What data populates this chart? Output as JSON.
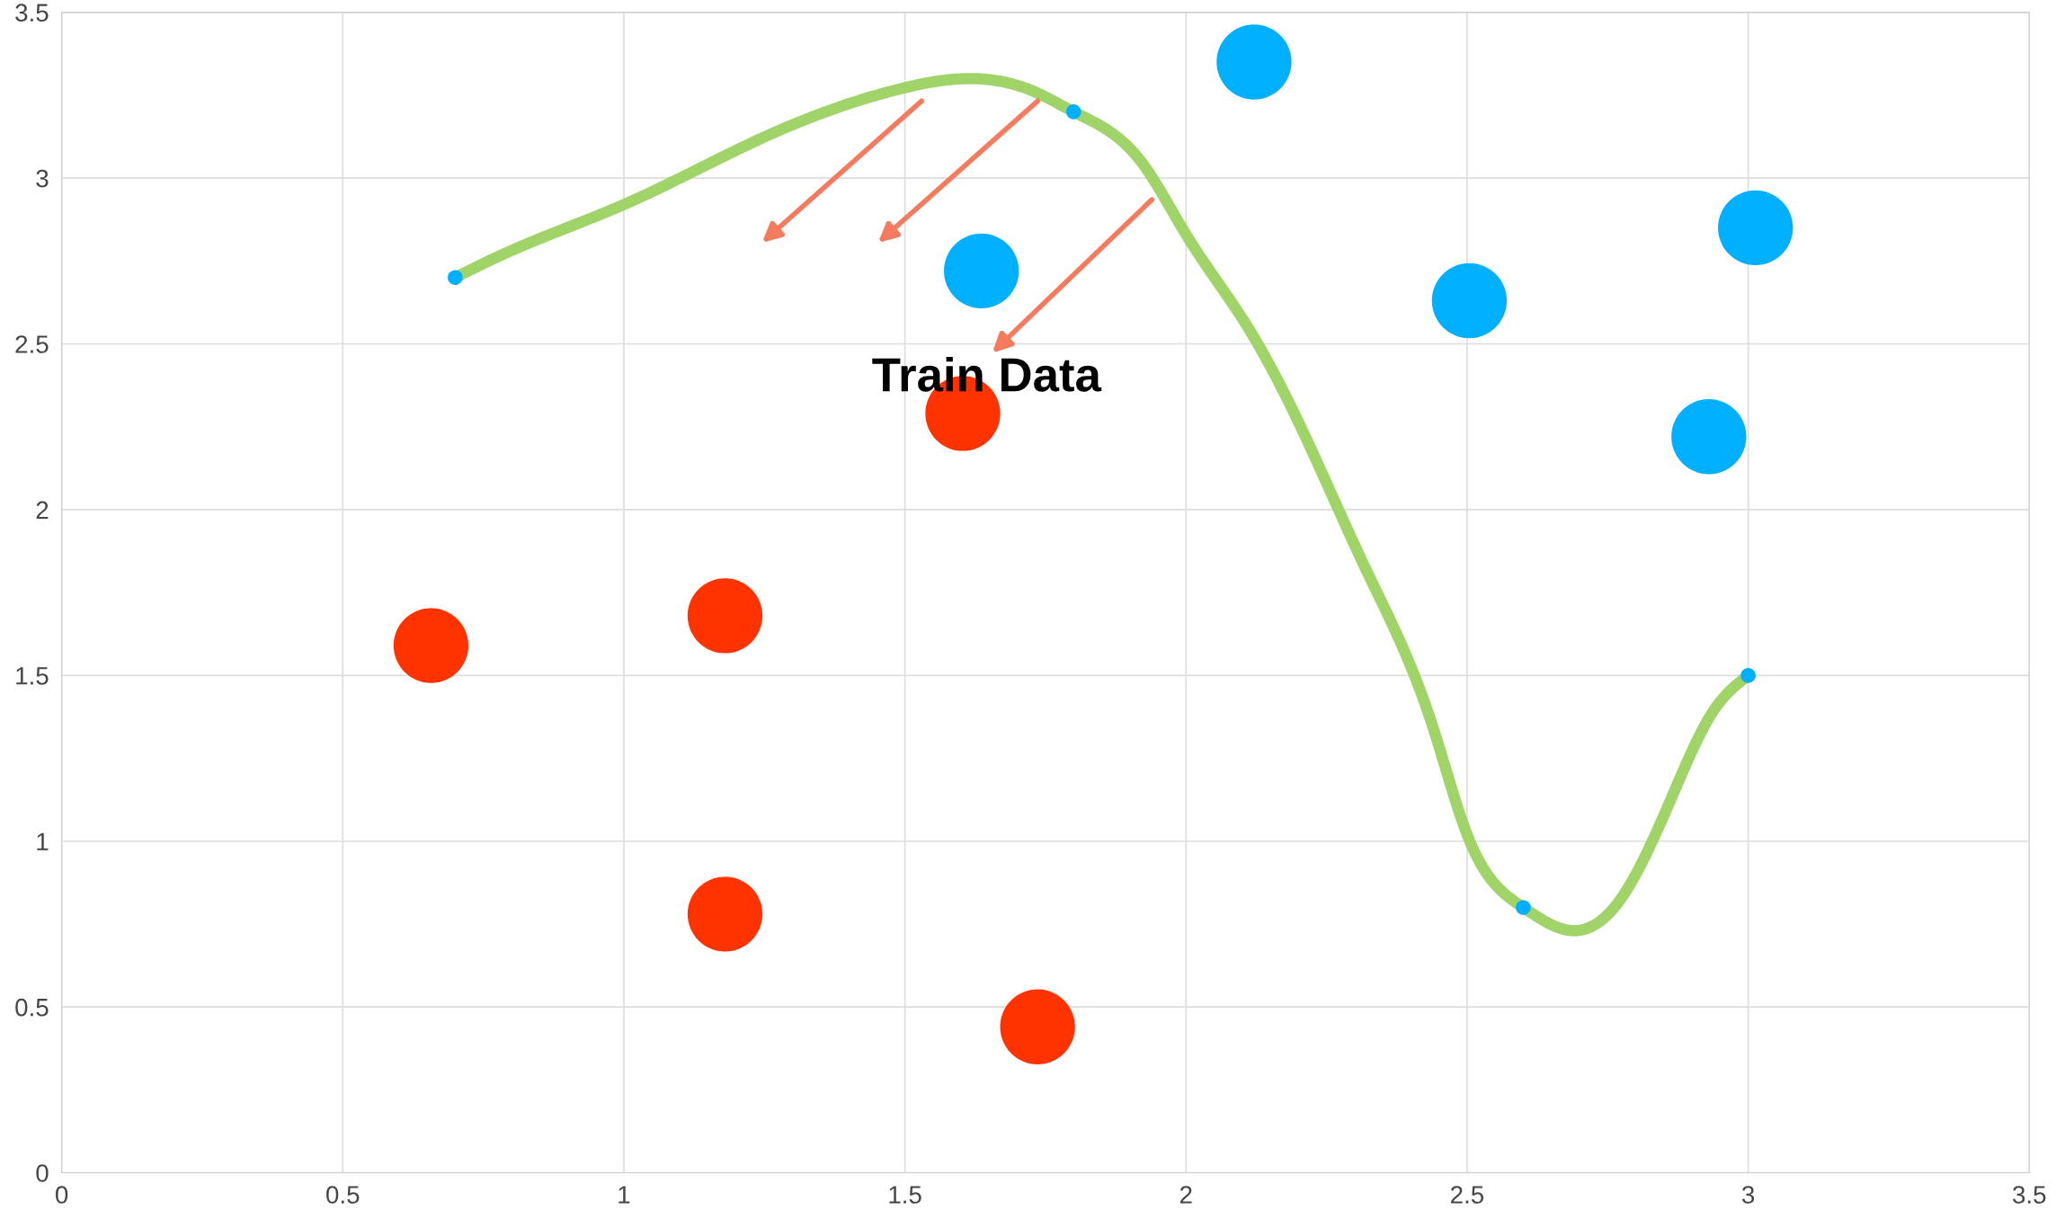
{
  "chart_data": {
    "type": "bubble",
    "xlim": [
      0,
      3.5
    ],
    "ylim": [
      0,
      3.5
    ],
    "xticks": [
      0,
      0.5,
      1,
      1.5,
      2,
      2.5,
      3,
      3.5
    ],
    "yticks": [
      0,
      0.5,
      1,
      1.5,
      2,
      2.5,
      3,
      3.5
    ],
    "grid": true,
    "marker": "circle",
    "series": [
      {
        "type": "line",
        "color": "#a0d468",
        "marker": "none",
        "line_style": "solid",
        "x": [
          0.7,
          0.785,
          1.0,
          1.258,
          1.494,
          1.613,
          1.731,
          1.8,
          1.92,
          2.0,
          2.11,
          2.204,
          2.32,
          2.44,
          2.5,
          2.6,
          2.689,
          2.771,
          2.866,
          2.937,
          3.0
        ],
        "values": [
          2.7,
          2.77,
          2.92,
          3.13,
          3.27,
          3.3,
          3.26,
          3.2,
          3.05,
          2.83,
          2.55,
          2.25,
          1.82,
          1.34,
          1.02,
          0.8,
          0.73,
          0.82,
          1.14,
          1.39,
          1.5
        ]
      },
      {
        "color": "#00b0ff",
        "x": [
          0.7,
          1.8,
          2.6,
          3.0
        ],
        "values": [
          2.7,
          3.2,
          0.8,
          1.5
        ],
        "sizes": [
          0.04,
          0.04,
          0.04,
          0.04
        ]
      },
      {
        "color": "#ff3300",
        "x": [
          0.657,
          1.18,
          1.18,
          1.603,
          1.736
        ],
        "values": [
          1.59,
          1.68,
          0.78,
          2.29,
          0.44
        ],
        "sizes": [
          1,
          1,
          1,
          1,
          1
        ]
      },
      {
        "color": "#00b0ff",
        "x": [
          1.636,
          2.121,
          2.504,
          3.013,
          2.93
        ],
        "values": [
          2.72,
          3.35,
          2.63,
          2.85,
          2.22
        ],
        "sizes": [
          1,
          1,
          1,
          1,
          1
        ]
      }
    ],
    "annotations": [
      "Train Data"
    ]
  }
}
